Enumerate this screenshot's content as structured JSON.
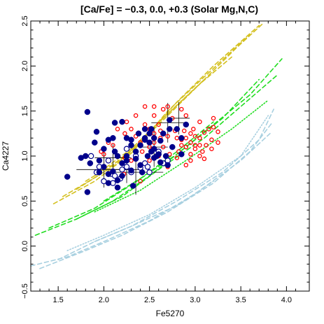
{
  "chart_data": {
    "type": "scatter",
    "title": "[Ca/Fe] = −0.3, 0.0, +0.3   (Solar Mg,N,C)",
    "xlabel": "Fe5270",
    "ylabel": "Ca4227",
    "xlim": [
      1.2,
      4.25
    ],
    "ylim": [
      -0.5,
      2.5
    ],
    "x_ticks": [
      {
        "value": 1.5,
        "label": "1.5"
      },
      {
        "value": 2.0,
        "label": "2.0"
      },
      {
        "value": 2.5,
        "label": "2.5"
      },
      {
        "value": 3.0,
        "label": "3.0"
      },
      {
        "value": 3.5,
        "label": "3.5"
      },
      {
        "value": 4.0,
        "label": "4.0"
      }
    ],
    "y_ticks": [
      {
        "value": -0.5,
        "label": "−0.5"
      },
      {
        "value": 0.0,
        "label": "0.0"
      },
      {
        "value": 0.5,
        "label": "0.5"
      },
      {
        "value": 1.0,
        "label": "1.0"
      },
      {
        "value": 1.5,
        "label": "1.5"
      },
      {
        "value": 2.0,
        "label": "2.0"
      },
      {
        "value": 2.5,
        "label": "2.5"
      }
    ],
    "grid": false,
    "colors": {
      "ca_plus": "#d4c020",
      "ca_zero": "#22dd22",
      "ca_minus": "#a8d0e0",
      "filled": "#00008b",
      "open_edge": "#00008b",
      "red": "#ff0000",
      "errorbar": "#000000"
    },
    "model_lines": [
      {
        "group": "ca_plus",
        "dash": "dashed",
        "points": [
          [
            1.45,
            0.47
          ],
          [
            1.9,
            0.72
          ],
          [
            2.3,
            1.03
          ],
          [
            2.7,
            1.5
          ],
          [
            3.1,
            1.88
          ],
          [
            3.6,
            2.35
          ]
        ]
      },
      {
        "group": "ca_plus",
        "dash": "dashed",
        "points": [
          [
            1.55,
            0.55
          ],
          [
            2.0,
            0.82
          ],
          [
            2.4,
            1.15
          ],
          [
            2.8,
            1.6
          ],
          [
            3.2,
            2.0
          ],
          [
            3.7,
            2.45
          ]
        ]
      },
      {
        "group": "ca_plus",
        "dash": "dashed",
        "points": [
          [
            1.7,
            0.63
          ],
          [
            2.15,
            0.92
          ],
          [
            2.6,
            1.35
          ],
          [
            3.0,
            1.75
          ],
          [
            3.45,
            2.2
          ],
          [
            3.75,
            2.48
          ]
        ]
      },
      {
        "group": "ca_plus",
        "dash": "dashed",
        "points": [
          [
            1.8,
            0.72
          ],
          [
            2.25,
            1.0
          ],
          [
            2.65,
            1.42
          ],
          [
            3.05,
            1.8
          ],
          [
            3.4,
            2.1
          ]
        ]
      },
      {
        "group": "ca_plus",
        "dash": "dashed",
        "points": [
          [
            1.9,
            0.78
          ],
          [
            2.3,
            1.08
          ],
          [
            2.7,
            1.47
          ],
          [
            3.1,
            1.85
          ]
        ]
      },
      {
        "group": "ca_zero",
        "dash": "dashed",
        "points": [
          [
            1.25,
            0.12
          ],
          [
            1.7,
            0.3
          ],
          [
            2.2,
            0.55
          ],
          [
            2.6,
            0.85
          ],
          [
            3.1,
            1.2
          ],
          [
            3.5,
            1.55
          ],
          [
            3.9,
            1.9
          ]
        ]
      },
      {
        "group": "ca_zero",
        "dash": "dashed",
        "points": [
          [
            1.4,
            0.2
          ],
          [
            1.9,
            0.42
          ],
          [
            2.3,
            0.68
          ],
          [
            2.8,
            1.02
          ],
          [
            3.2,
            1.35
          ],
          [
            3.6,
            1.68
          ],
          [
            3.95,
            2.08
          ]
        ]
      },
      {
        "group": "ca_zero",
        "dash": "dashed",
        "points": [
          [
            1.7,
            0.3
          ],
          [
            2.1,
            0.5
          ],
          [
            2.5,
            0.78
          ],
          [
            2.9,
            1.1
          ],
          [
            3.3,
            1.42
          ],
          [
            3.7,
            1.85
          ]
        ]
      },
      {
        "group": "ca_zero",
        "dash": "dotted",
        "points": [
          [
            1.9,
            0.38
          ],
          [
            2.4,
            0.62
          ],
          [
            2.9,
            0.95
          ],
          [
            3.4,
            1.3
          ],
          [
            3.8,
            1.62
          ]
        ]
      },
      {
        "group": "ca_zero",
        "dash": "dashed",
        "points": [
          [
            2.0,
            0.5
          ],
          [
            2.4,
            0.75
          ],
          [
            2.8,
            1.05
          ],
          [
            3.2,
            1.38
          ]
        ]
      },
      {
        "group": "ca_minus",
        "dash": "dashed",
        "points": [
          [
            1.2,
            -0.22
          ],
          [
            1.6,
            -0.12
          ],
          [
            2.0,
            0.05
          ],
          [
            2.5,
            0.28
          ],
          [
            3.0,
            0.58
          ],
          [
            3.5,
            0.95
          ],
          [
            3.82,
            1.25
          ]
        ]
      },
      {
        "group": "ca_minus",
        "dash": "dashed",
        "points": [
          [
            1.3,
            -0.25
          ],
          [
            1.8,
            -0.05
          ],
          [
            2.2,
            0.12
          ],
          [
            2.7,
            0.38
          ],
          [
            3.2,
            0.7
          ],
          [
            3.6,
            1.05
          ],
          [
            3.85,
            1.38
          ]
        ]
      },
      {
        "group": "ca_minus",
        "dash": "dashed",
        "points": [
          [
            1.5,
            -0.15
          ],
          [
            1.9,
            0.05
          ],
          [
            2.3,
            0.22
          ],
          [
            2.8,
            0.5
          ],
          [
            3.3,
            0.82
          ],
          [
            3.7,
            1.18
          ],
          [
            3.86,
            1.52
          ]
        ]
      },
      {
        "group": "ca_minus",
        "dash": "dotted",
        "points": [
          [
            1.6,
            -0.05
          ],
          [
            2.0,
            0.12
          ],
          [
            2.5,
            0.35
          ],
          [
            3.0,
            0.65
          ],
          [
            3.5,
            1.0
          ],
          [
            3.8,
            1.45
          ]
        ]
      },
      {
        "group": "ca_minus",
        "dash": "dashed",
        "points": [
          [
            1.9,
            0.05
          ],
          [
            2.3,
            0.22
          ],
          [
            2.8,
            0.45
          ],
          [
            3.2,
            0.72
          ]
        ]
      }
    ],
    "series": [
      {
        "style": "filled",
        "points": [
          [
            1.82,
            1.49
          ],
          [
            2.2,
            1.38
          ],
          [
            1.92,
            1.27
          ],
          [
            2.12,
            1.37
          ],
          [
            2.25,
            1.2
          ],
          [
            2.3,
            1.12
          ],
          [
            1.9,
            1.15
          ],
          [
            2.05,
            1.18
          ],
          [
            2.1,
            1.2
          ],
          [
            2.12,
            1.05
          ],
          [
            2.0,
            1.08
          ],
          [
            1.75,
            0.98
          ],
          [
            1.8,
            1.0
          ],
          [
            1.85,
            0.92
          ],
          [
            1.6,
            0.77
          ],
          [
            1.82,
            0.6
          ],
          [
            1.95,
            0.82
          ],
          [
            2.15,
            0.73
          ],
          [
            2.2,
            0.78
          ],
          [
            2.1,
            0.83
          ],
          [
            1.95,
            0.95
          ],
          [
            2.2,
            0.92
          ],
          [
            2.3,
            0.84
          ],
          [
            2.4,
            0.9
          ],
          [
            2.42,
            0.82
          ],
          [
            2.32,
            0.67
          ],
          [
            2.05,
            0.7
          ],
          [
            2.0,
            0.88
          ],
          [
            2.35,
            1.05
          ],
          [
            2.45,
            1.2
          ],
          [
            2.5,
            1.15
          ],
          [
            2.55,
            1.08
          ],
          [
            2.48,
            1.0
          ],
          [
            2.6,
            1.02
          ],
          [
            2.4,
            1.12
          ],
          [
            2.5,
            1.25
          ],
          [
            2.45,
            1.18
          ],
          [
            2.55,
            1.2
          ],
          [
            2.65,
            1.25
          ],
          [
            2.72,
            1.3
          ],
          [
            2.8,
            1.3
          ],
          [
            2.85,
            1.2
          ],
          [
            2.75,
            1.1
          ],
          [
            2.68,
            1.0
          ],
          [
            2.62,
            0.93
          ],
          [
            2.7,
            0.9
          ],
          [
            2.85,
            1.02
          ],
          [
            2.9,
            1.35
          ],
          [
            2.3,
            1.18
          ],
          [
            2.25,
            1.0
          ],
          [
            2.15,
            1.0
          ],
          [
            2.05,
            0.8
          ],
          [
            2.15,
            0.65
          ],
          [
            2.35,
            0.97
          ],
          [
            2.45,
            1.3
          ],
          [
            2.55,
            0.98
          ],
          [
            2.62,
            1.17
          ],
          [
            2.72,
            1.4
          ],
          [
            2.58,
            1.0
          ],
          [
            2.38,
            1.25
          ],
          [
            2.25,
            0.95
          ],
          [
            2.52,
            1.05
          ],
          [
            2.52,
            1.3
          ]
        ]
      },
      {
        "style": "open",
        "points": [
          [
            1.92,
            0.82
          ],
          [
            2.0,
            0.72
          ],
          [
            2.08,
            0.8
          ],
          [
            2.1,
            0.7
          ],
          [
            2.25,
            0.88
          ],
          [
            2.3,
            0.82
          ],
          [
            2.2,
            0.85
          ],
          [
            2.05,
            0.95
          ],
          [
            2.12,
            0.78
          ],
          [
            2.35,
            1.0
          ],
          [
            2.4,
            0.87
          ],
          [
            2.5,
            0.82
          ],
          [
            2.65,
            0.92
          ],
          [
            2.7,
            0.95
          ],
          [
            2.6,
            1.05
          ],
          [
            2.45,
            0.92
          ],
          [
            2.18,
            0.75
          ],
          [
            1.95,
            0.88
          ],
          [
            2.48,
            0.88
          ],
          [
            1.86,
            1.0
          ],
          [
            2.25,
            1.08
          ]
        ]
      },
      {
        "style": "red",
        "points": [
          [
            2.5,
            1.3
          ],
          [
            2.55,
            1.25
          ],
          [
            2.62,
            1.2
          ],
          [
            2.7,
            1.22
          ],
          [
            2.8,
            1.2
          ],
          [
            2.85,
            1.18
          ],
          [
            2.9,
            1.2
          ],
          [
            2.95,
            1.25
          ],
          [
            3.0,
            1.22
          ],
          [
            3.05,
            1.2
          ],
          [
            3.1,
            1.26
          ],
          [
            3.15,
            1.3
          ],
          [
            3.2,
            1.32
          ],
          [
            2.75,
            1.1
          ],
          [
            2.82,
            1.05
          ],
          [
            2.9,
            1.1
          ],
          [
            2.95,
            1.02
          ],
          [
            3.0,
            1.08
          ],
          [
            3.05,
            1.0
          ],
          [
            3.12,
            1.12
          ],
          [
            3.18,
            1.18
          ],
          [
            2.65,
            1.1
          ],
          [
            2.72,
            1.02
          ],
          [
            2.85,
            1.12
          ],
          [
            2.95,
            1.15
          ],
          [
            3.08,
            1.05
          ],
          [
            3.18,
            1.08
          ],
          [
            3.25,
            1.15
          ],
          [
            2.6,
            1.35
          ],
          [
            2.75,
            1.42
          ],
          [
            2.9,
            1.45
          ],
          [
            3.05,
            1.38
          ],
          [
            2.55,
            1.45
          ],
          [
            2.45,
            1.55
          ],
          [
            2.35,
            1.45
          ],
          [
            2.25,
            1.38
          ],
          [
            2.7,
            1.55
          ],
          [
            2.85,
            1.52
          ],
          [
            3.2,
            1.42
          ],
          [
            2.5,
            1.1
          ],
          [
            2.6,
            1.0
          ],
          [
            2.8,
            0.98
          ],
          [
            2.9,
            0.9
          ],
          [
            2.7,
            0.88
          ],
          [
            2.35,
            1.22
          ],
          [
            2.42,
            1.05
          ],
          [
            2.5,
            0.95
          ],
          [
            2.3,
            0.95
          ],
          [
            2.4,
            0.72
          ],
          [
            2.22,
            0.8
          ],
          [
            2.1,
            1.12
          ],
          [
            2.0,
            1.02
          ],
          [
            1.97,
            1.05
          ],
          [
            2.23,
            0.98
          ],
          [
            2.15,
            1.3
          ],
          [
            2.05,
            1.15
          ],
          [
            2.4,
            1.15
          ],
          [
            2.55,
            1.15
          ],
          [
            2.3,
            1.3
          ],
          [
            2.23,
            1.25
          ],
          [
            2.78,
            1.28
          ],
          [
            2.88,
            1.28
          ],
          [
            3.0,
            1.12
          ],
          [
            2.62,
            1.28
          ],
          [
            2.95,
            0.95
          ],
          [
            3.1,
            0.97
          ],
          [
            2.98,
            1.3
          ],
          [
            2.45,
            1.35
          ],
          [
            2.55,
            1.55
          ],
          [
            2.65,
            1.52
          ],
          [
            3.05,
            1.12
          ],
          [
            3.25,
            1.27
          ]
        ]
      }
    ],
    "errorbars": [
      {
        "x": 2.7,
        "y": 1.37,
        "xerr": 0.18,
        "yerr": 0.22
      },
      {
        "x": 2.82,
        "y": 1.42,
        "xerr": 0.12,
        "yerr": 0.18
      },
      {
        "x": 2.55,
        "y": 1.1,
        "xerr": 0.15,
        "yerr": 0.22
      },
      {
        "x": 2.1,
        "y": 0.98,
        "xerr": 0.2,
        "yerr": 0.15
      },
      {
        "x": 2.35,
        "y": 0.82,
        "xerr": 0.3,
        "yerr": 0.25
      },
      {
        "x": 2.0,
        "y": 0.85,
        "xerr": 0.3,
        "yerr": 0.2
      },
      {
        "x": 2.25,
        "y": 0.85,
        "xerr": 0.15,
        "yerr": 0.15
      }
    ]
  }
}
